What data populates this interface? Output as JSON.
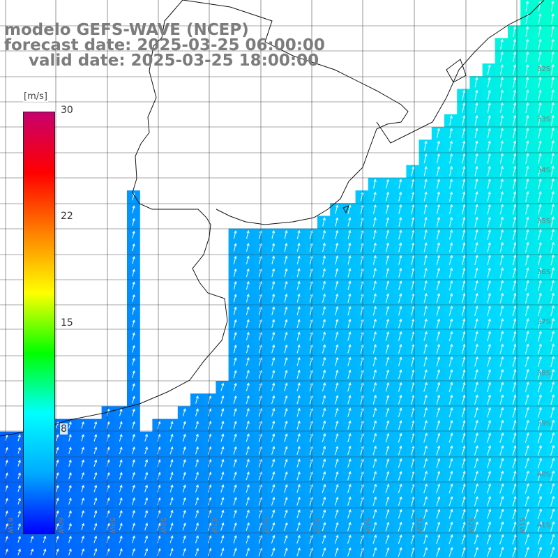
{
  "title": {
    "line1": "modelo GEFS-WAVE (NCEP)",
    "line2": "forecast date: 2025-03-25 06:00:00",
    "line3": "valid date: 2025-03-25 18:00:00"
  },
  "colorbar": {
    "unit": "[m/s]",
    "min": 0,
    "max": 30,
    "ticks": [
      "30",
      "22",
      "15",
      "8"
    ],
    "tick_values": [
      30,
      22,
      15,
      8
    ],
    "colors": [
      "#0000ff",
      "#00aaff",
      "#00ffff",
      "#00ff00",
      "#ffff00",
      "#ff8000",
      "#ff0000",
      "#c8006e"
    ]
  },
  "graticule": {
    "lat_labels": [
      "32S",
      "33S",
      "34S",
      "35S",
      "36S",
      "37S",
      "38S",
      "39S",
      "40S",
      "41S"
    ],
    "lon_labels": [
      "61W",
      "60W",
      "59W",
      "58W",
      "57W",
      "56W",
      "55W",
      "54W",
      "53W",
      "52W",
      "51W"
    ]
  },
  "field": {
    "variable": "wind speed",
    "typical_speed_ms": 7,
    "wind_direction": "from the south/south-west"
  }
}
